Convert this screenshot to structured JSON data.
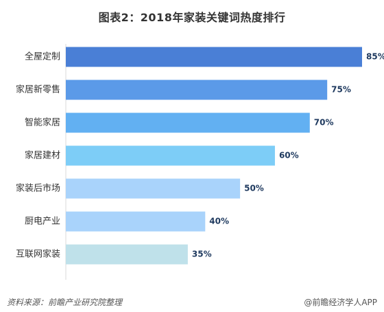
{
  "title": "图表2：2018年家装关键词热度排行",
  "footer": {
    "source": "资料来源：前瞻产业研究院整理",
    "credit": "@前瞻经济学人APP"
  },
  "chart_data": {
    "type": "bar",
    "orientation": "horizontal",
    "title": "图表2：2018年家装关键词热度排行",
    "xlabel": "",
    "ylabel": "",
    "categories": [
      "全屋定制",
      "家居新零售",
      "智能家居",
      "家居建材",
      "家装后市场",
      "厨电产业",
      "互联网家装"
    ],
    "values": [
      85,
      75,
      70,
      60,
      50,
      40,
      35
    ],
    "data_labels": [
      "85%",
      "75%",
      "70%",
      "60%",
      "50%",
      "40%",
      "35%"
    ],
    "xlim": [
      0,
      85
    ],
    "grid": false,
    "colors": [
      "#4a7fd6",
      "#5b9ae8",
      "#62b0f2",
      "#7dcdf7",
      "#a9d3fb",
      "#a9d3fb",
      "#bfe1ea"
    ]
  }
}
